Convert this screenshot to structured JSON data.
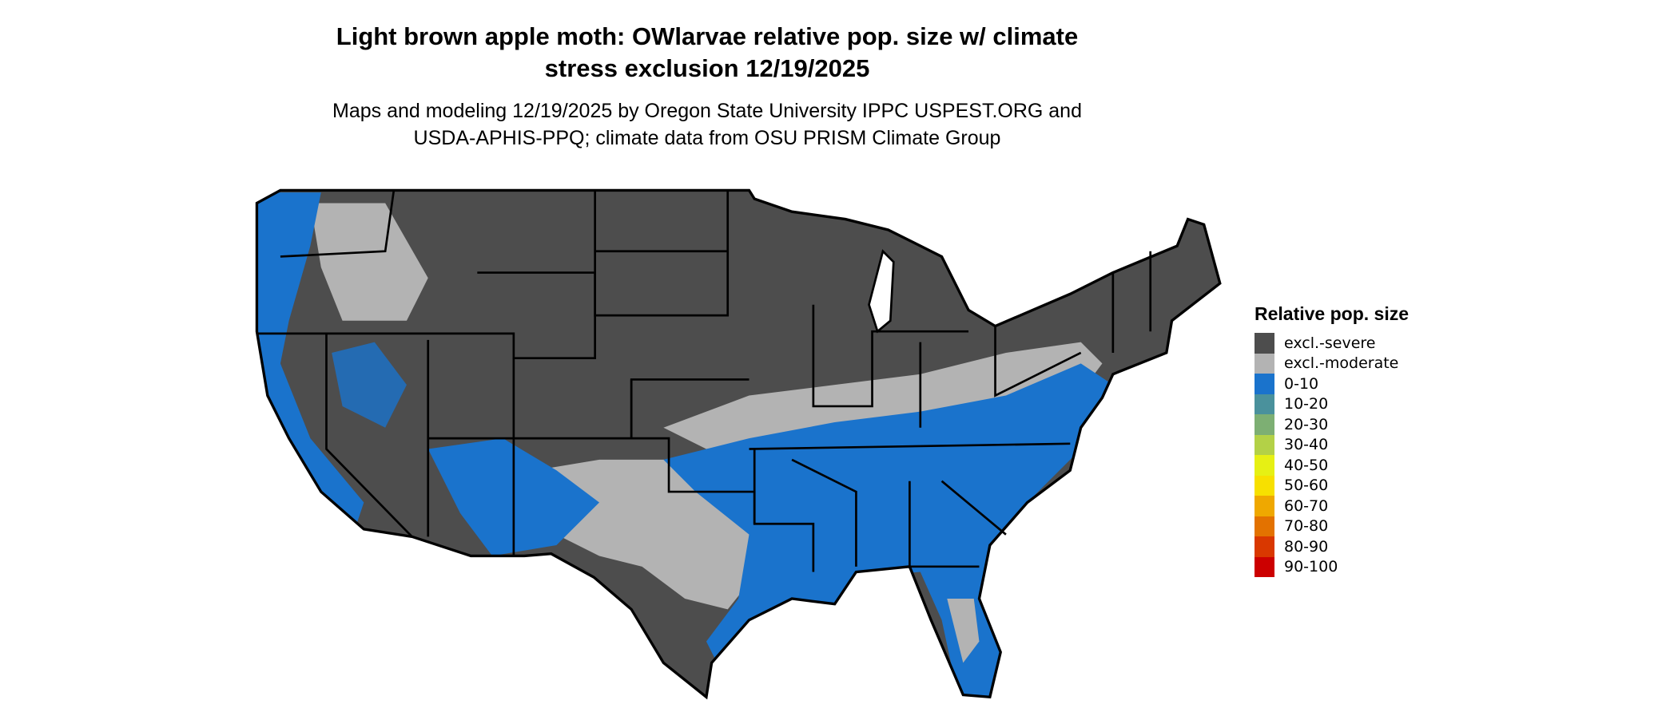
{
  "header": {
    "title_line1": "Light brown apple moth: OWlarvae relative pop. size w/ climate",
    "title_line2": "stress exclusion 12/19/2025",
    "subtitle_line1": "Maps and modeling 12/19/2025 by Oregon State University IPPC USPEST.ORG and",
    "subtitle_line2": "USDA-APHIS-PPQ; climate data from OSU PRISM Climate Group"
  },
  "map": {
    "region": "Contiguous United States",
    "colors": {
      "excl_severe": "#4d4d4d",
      "excl_moderate": "#b3b3b3",
      "low": "#1a73cc",
      "border": "#000000"
    }
  },
  "legend": {
    "title": "Relative pop. size",
    "items": [
      {
        "label": "excl.-severe",
        "color": "#4d4d4d"
      },
      {
        "label": "excl.-moderate",
        "color": "#b3b3b3"
      },
      {
        "label": "0-10",
        "color": "#1a73cc"
      },
      {
        "label": "10-20",
        "color": "#4a919c"
      },
      {
        "label": "20-30",
        "color": "#7daf73"
      },
      {
        "label": "30-40",
        "color": "#b3d147"
      },
      {
        "label": "40-50",
        "color": "#e6f014"
      },
      {
        "label": "50-60",
        "color": "#f7e000"
      },
      {
        "label": "60-70",
        "color": "#efa800"
      },
      {
        "label": "70-80",
        "color": "#e37200"
      },
      {
        "label": "80-90",
        "color": "#d93800"
      },
      {
        "label": "90-100",
        "color": "#cc0000"
      }
    ]
  }
}
